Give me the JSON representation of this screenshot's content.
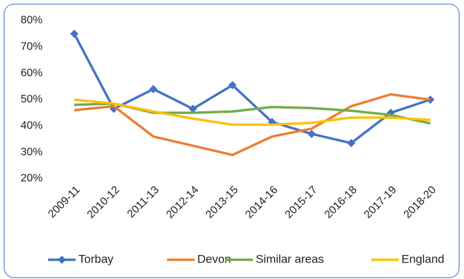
{
  "chart_data": {
    "type": "line",
    "categories": [
      "2009-11",
      "2010-12",
      "2011-13",
      "2012-14",
      "2013-15",
      "2014-16",
      "2015-17",
      "2016-18",
      "2017-19",
      "2018-20"
    ],
    "series": [
      {
        "name": "Torbay",
        "color": "#4472c4",
        "marker": "diamond",
        "values": [
          75,
          46.5,
          54,
          46.5,
          55.5,
          41.5,
          37,
          33.5,
          45,
          50
        ]
      },
      {
        "name": "Devon",
        "color": "#ed7d31",
        "values": [
          46,
          47.5,
          36,
          32.5,
          29,
          36,
          39,
          47.5,
          52,
          50
        ]
      },
      {
        "name": "Similar areas",
        "color": "#70ad47",
        "values": [
          48,
          48.5,
          45,
          45,
          45.5,
          47.2,
          46.8,
          45.8,
          44.2,
          41
        ]
      },
      {
        "name": "England",
        "color": "#ffc000",
        "values": [
          50,
          48.5,
          45.5,
          42.8,
          40.5,
          40.5,
          41.2,
          43.2,
          43.2,
          42.3
        ]
      }
    ],
    "ylim": [
      20,
      80
    ],
    "yticks": [
      {
        "value": 20,
        "label": "20%"
      },
      {
        "value": 30,
        "label": "30%"
      },
      {
        "value": 40,
        "label": "40%"
      },
      {
        "value": 50,
        "label": "50%"
      },
      {
        "value": 60,
        "label": "60%"
      },
      {
        "value": 70,
        "label": "70%"
      },
      {
        "value": 80,
        "label": "80%"
      }
    ],
    "grid": false,
    "legend": "bottom"
  }
}
